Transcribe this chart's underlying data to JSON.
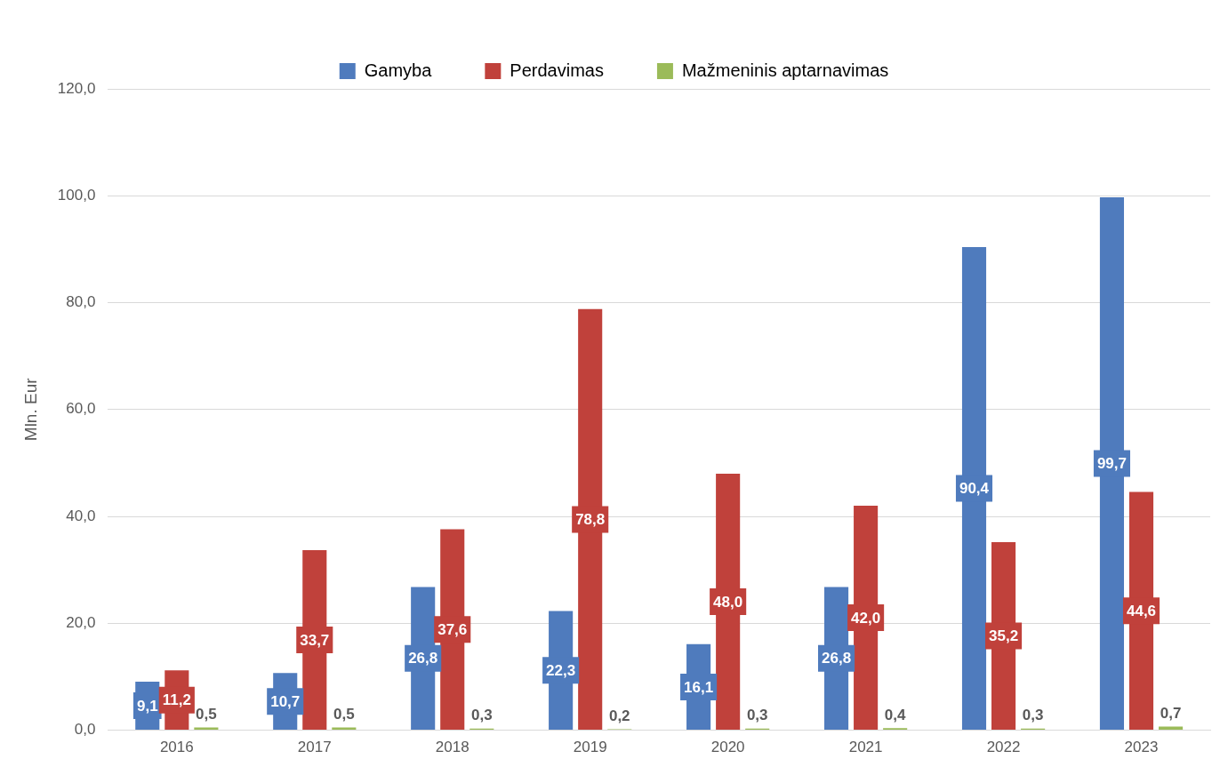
{
  "chart_data": {
    "type": "bar",
    "ylabel": "Mln. Eur",
    "categories": [
      "2016",
      "2017",
      "2018",
      "2019",
      "2020",
      "2021",
      "2022",
      "2023"
    ],
    "series": [
      {
        "name": "Gamyba",
        "color": "#4f7bbd",
        "values": [
          9.1,
          10.7,
          26.8,
          22.3,
          16.1,
          26.8,
          90.4,
          99.7
        ],
        "value_labels": [
          "9,1",
          "10,7",
          "26,8",
          "22,3",
          "16,1",
          "26,8",
          "90,4",
          "99,7"
        ]
      },
      {
        "name": "Perdavimas",
        "color": "#c0413b",
        "values": [
          11.2,
          33.7,
          37.6,
          78.8,
          48.0,
          42.0,
          35.2,
          44.6
        ],
        "value_labels": [
          "11,2",
          "33,7",
          "37,6",
          "78,8",
          "48,0",
          "42,0",
          "35,2",
          "44,6"
        ]
      },
      {
        "name": "Mažmeninis aptarnavimas",
        "color": "#9bbb59",
        "values": [
          0.5,
          0.5,
          0.3,
          0.2,
          0.3,
          0.4,
          0.3,
          0.7
        ],
        "value_labels": [
          "0,5",
          "0,5",
          "0,3",
          "0,2",
          "0,3",
          "0,4",
          "0,3",
          "0,7"
        ]
      }
    ],
    "ylim": [
      0,
      120
    ],
    "yticks": [
      {
        "value": 0,
        "label": "0,0"
      },
      {
        "value": 20,
        "label": "20,0"
      },
      {
        "value": 40,
        "label": "40,0"
      },
      {
        "value": 60,
        "label": "60,0"
      },
      {
        "value": 80,
        "label": "80,0"
      },
      {
        "value": 100,
        "label": "100,0"
      },
      {
        "value": 120,
        "label": "120,0"
      }
    ],
    "grid": "y",
    "legend": "top"
  }
}
